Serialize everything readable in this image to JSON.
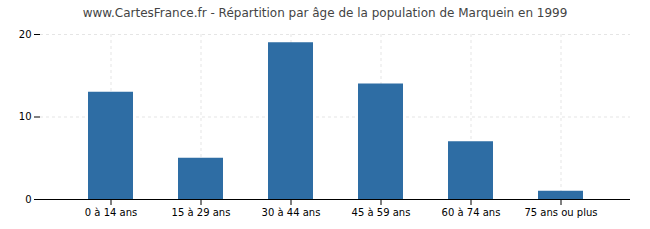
{
  "chart_data": {
    "type": "bar",
    "title": "www.CartesFrance.fr - Répartition par âge de la population de Marquein en 1999",
    "categories": [
      "0 à 14 ans",
      "15 à 29 ans",
      "30 à 44 ans",
      "45 à 59 ans",
      "60 à 74 ans",
      "75 ans ou plus"
    ],
    "values": [
      13,
      5,
      19,
      14,
      7,
      1
    ],
    "color": "#2e6da4",
    "ylim": [
      0,
      20
    ],
    "yticks": [
      0,
      10,
      20
    ],
    "grid": true
  }
}
